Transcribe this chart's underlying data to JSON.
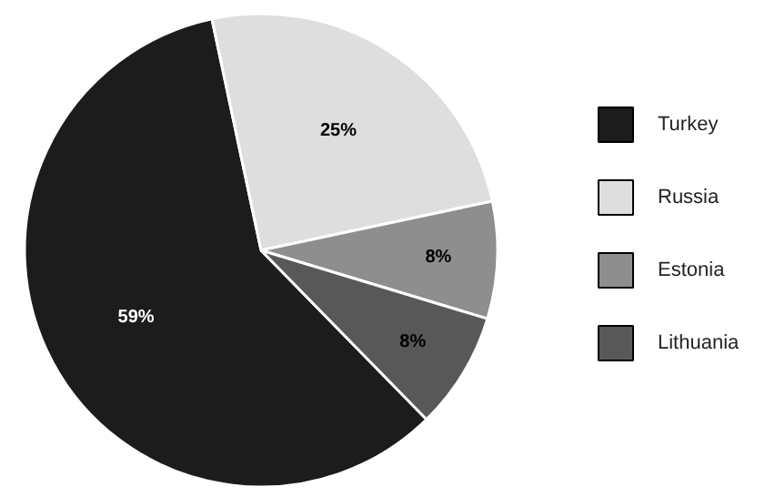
{
  "chart_data": {
    "type": "pie",
    "categories": [
      "Turkey",
      "Russia",
      "Estonia",
      "Lithuania"
    ],
    "values": [
      59,
      25,
      8,
      8
    ],
    "colors": [
      "#1c1c1c",
      "#dedede",
      "#8e8e8e",
      "#585858"
    ],
    "value_labels": [
      "59%",
      "25%",
      "8%",
      "8%"
    ],
    "legend": "right"
  }
}
